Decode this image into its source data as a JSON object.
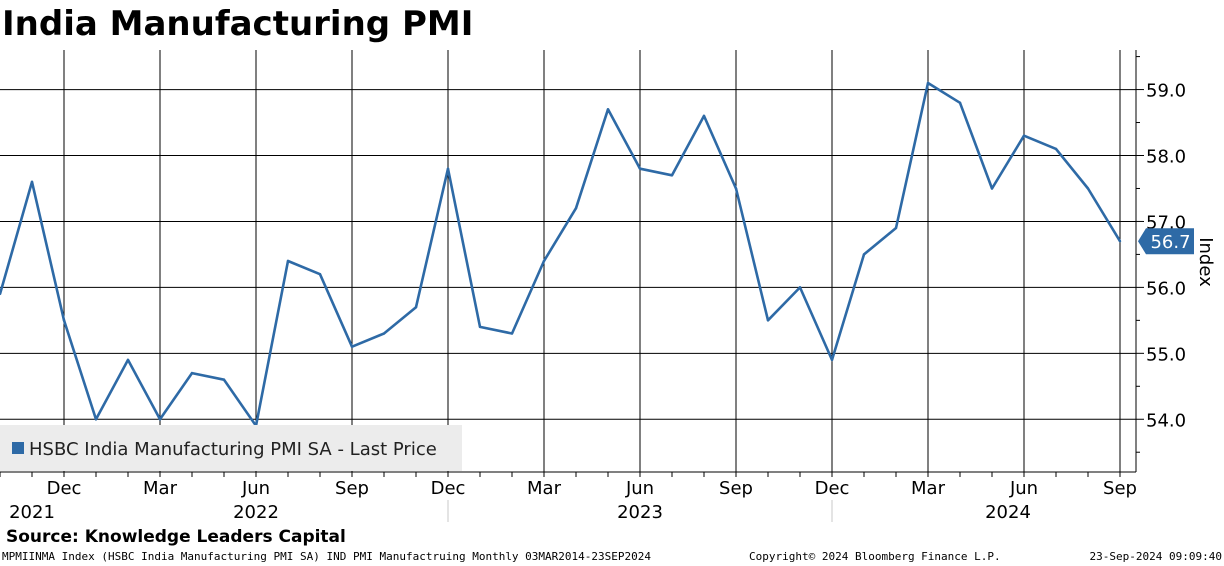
{
  "title": "India Manufacturing PMI",
  "source": "Source: Knowledge Leaders Capital",
  "footer": {
    "left": "MPMIINMA Index (HSBC India Manufacturing PMI SA) IND PMI Manufactruing  Monthly 03MAR2014-23SEP2024",
    "middle": "Copyright© 2024 Bloomberg Finance L.P.",
    "right": "23-Sep-2024 09:09:40"
  },
  "colors": {
    "line": "#2e6aa6",
    "grid": "#000000",
    "legend_bg": "#ececec"
  },
  "chart_data": {
    "type": "line",
    "title": "India Manufacturing PMI",
    "ylabel": "Index",
    "ylim": [
      53.2,
      59.6
    ],
    "y_ticks": [
      54.0,
      55.0,
      56.0,
      57.0,
      58.0,
      59.0
    ],
    "y_tick_labels": [
      "54.0",
      "55.0",
      "56.0",
      "57.0",
      "58.0",
      "59.0"
    ],
    "x_index_range": [
      0,
      35.5
    ],
    "month_ticks": [
      {
        "label": "Dec",
        "x": 2
      },
      {
        "label": "Mar",
        "x": 5
      },
      {
        "label": "Jun",
        "x": 8
      },
      {
        "label": "Sep",
        "x": 11
      },
      {
        "label": "Dec",
        "x": 14
      },
      {
        "label": "Mar",
        "x": 17
      },
      {
        "label": "Jun",
        "x": 20
      },
      {
        "label": "Sep",
        "x": 23
      },
      {
        "label": "Dec",
        "x": 26
      },
      {
        "label": "Mar",
        "x": 29
      },
      {
        "label": "Jun",
        "x": 32
      },
      {
        "label": "Sep",
        "x": 35
      }
    ],
    "year_labels": [
      {
        "label": "2021",
        "x": 1
      },
      {
        "label": "2022",
        "x": 8
      },
      {
        "label": "2023",
        "x": 20
      },
      {
        "label": "2024",
        "x": 31.5
      }
    ],
    "year_separators": [
      14,
      26
    ],
    "last_value_label": "56.7",
    "legend_position": "bottom-left",
    "series": [
      {
        "name": "HSBC India Manufacturing PMI SA - Last Price",
        "x": [
          0,
          1,
          2,
          3,
          4,
          5,
          6,
          7,
          8,
          9,
          10,
          11,
          12,
          13,
          14,
          15,
          16,
          17,
          18,
          19,
          20,
          21,
          22,
          23,
          24,
          25,
          26,
          27,
          28,
          29,
          30,
          31,
          32,
          33,
          34,
          35
        ],
        "values": [
          55.9,
          57.6,
          55.5,
          54.0,
          54.9,
          54.0,
          54.7,
          54.6,
          53.9,
          56.4,
          56.2,
          55.1,
          55.3,
          55.7,
          57.8,
          55.4,
          55.3,
          56.4,
          57.2,
          58.7,
          57.8,
          57.7,
          58.6,
          57.5,
          55.5,
          56.0,
          54.9,
          56.5,
          56.9,
          59.1,
          58.8,
          57.5,
          58.3,
          58.1,
          57.5,
          56.7
        ]
      }
    ]
  }
}
